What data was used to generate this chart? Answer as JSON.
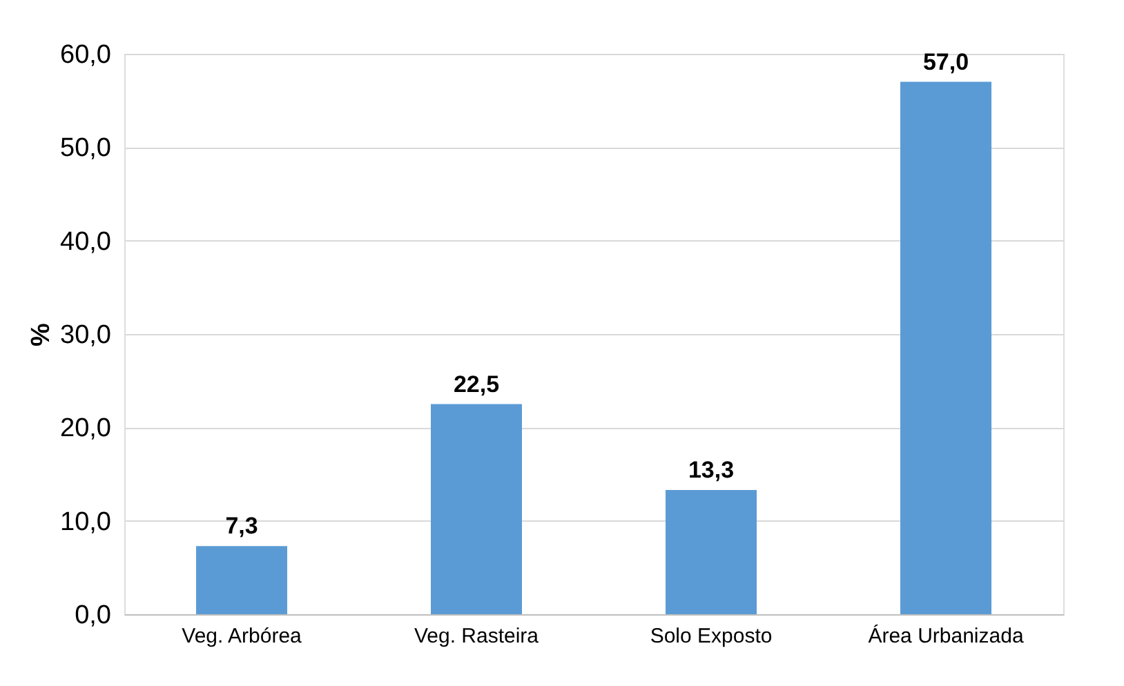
{
  "chart_data": {
    "type": "bar",
    "ylabel": "%",
    "categories": [
      "Veg. Arbórea",
      "Veg. Rasteira",
      "Solo Exposto",
      "Área Urbanizada"
    ],
    "values": [
      7.3,
      22.5,
      13.3,
      57.0
    ],
    "value_labels": [
      "7,3",
      "22,5",
      "13,3",
      "57,0"
    ],
    "color": "#5b9bd5",
    "ylim": [
      0,
      60
    ],
    "yticks": [
      {
        "value": 0,
        "label": "0,0"
      },
      {
        "value": 10,
        "label": "10,0"
      },
      {
        "value": 20,
        "label": "20,0"
      },
      {
        "value": 30,
        "label": "30,0"
      },
      {
        "value": 40,
        "label": "40,0"
      },
      {
        "value": 50,
        "label": "50,0"
      },
      {
        "value": 60,
        "label": "60,0"
      }
    ],
    "grid": "y"
  }
}
